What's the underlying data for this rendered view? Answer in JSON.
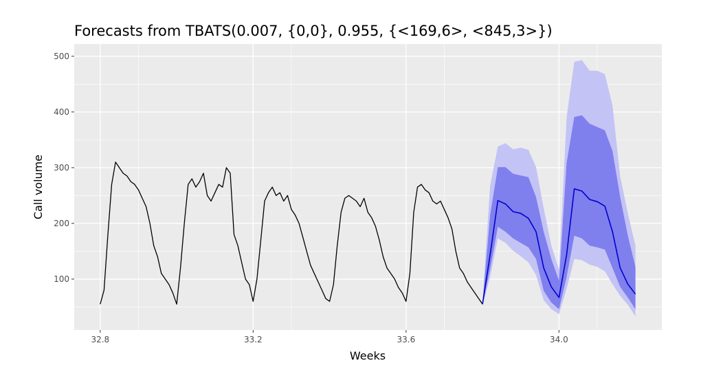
{
  "chart_data": {
    "type": "line",
    "title": "Forecasts from TBATS(0.007, {0,0}, 0.955, {<169,6>, <845,3>})",
    "xlabel": "Weeks",
    "ylabel": "Call volume",
    "xlim": [
      32.732,
      34.269
    ],
    "ylim": [
      8.6,
      522
    ],
    "x_ticks": [
      32.8,
      33.2,
      33.6,
      34.0
    ],
    "x_tick_labels": [
      "32.8",
      "33.2",
      "33.6",
      "34.0"
    ],
    "y_ticks": [
      100,
      200,
      300,
      400,
      500
    ],
    "y_tick_labels": [
      "100",
      "200",
      "300",
      "400",
      "500"
    ],
    "grid": true,
    "legend": "none",
    "colors": {
      "panel": "#ebebeb",
      "grid": "#ffffff",
      "history": "#000000",
      "mean": "#0000cc",
      "band80": "#7f7fee",
      "band95": "#c3c3f5"
    },
    "history": {
      "x": [
        32.8,
        32.81,
        32.82,
        32.83,
        32.84,
        32.85,
        32.86,
        32.87,
        32.88,
        32.89,
        32.9,
        32.91,
        32.92,
        32.93,
        32.94,
        32.95,
        32.96,
        32.97,
        32.98,
        32.99,
        33.0,
        33.01,
        33.02,
        33.03,
        33.04,
        33.05,
        33.06,
        33.07,
        33.08,
        33.09,
        33.1,
        33.11,
        33.12,
        33.13,
        33.14,
        33.15,
        33.16,
        33.17,
        33.18,
        33.19,
        33.2,
        33.21,
        33.22,
        33.23,
        33.24,
        33.25,
        33.26,
        33.27,
        33.28,
        33.29,
        33.3,
        33.31,
        33.32,
        33.33,
        33.34,
        33.35,
        33.36,
        33.37,
        33.38,
        33.39,
        33.4,
        33.41,
        33.42,
        33.43,
        33.44,
        33.45,
        33.46,
        33.47,
        33.48,
        33.49,
        33.5,
        33.51,
        33.52,
        33.53,
        33.54,
        33.55,
        33.56,
        33.57,
        33.58,
        33.59,
        33.6,
        33.61,
        33.62,
        33.63,
        33.64,
        33.65,
        33.66,
        33.67,
        33.68,
        33.69,
        33.7,
        33.71,
        33.72,
        33.73,
        33.74,
        33.75,
        33.76,
        33.77,
        33.78,
        33.79,
        33.8
      ],
      "y": [
        55,
        80,
        180,
        270,
        310,
        300,
        290,
        285,
        275,
        270,
        260,
        245,
        230,
        200,
        160,
        140,
        110,
        100,
        90,
        75,
        55,
        120,
        200,
        270,
        280,
        265,
        275,
        290,
        250,
        240,
        255,
        270,
        265,
        300,
        290,
        180,
        160,
        130,
        100,
        90,
        60,
        100,
        170,
        240,
        255,
        265,
        250,
        255,
        240,
        250,
        225,
        215,
        200,
        175,
        150,
        125,
        110,
        95,
        80,
        65,
        60,
        90,
        160,
        220,
        245,
        250,
        245,
        240,
        230,
        245,
        220,
        210,
        195,
        170,
        140,
        120,
        110,
        100,
        85,
        75,
        60,
        110,
        220,
        265,
        270,
        260,
        255,
        240,
        235,
        240,
        225,
        210,
        190,
        150,
        120,
        110,
        95,
        85,
        75,
        65,
        55
      ]
    },
    "forecast": {
      "x": [
        33.8,
        33.82,
        33.84,
        33.86,
        33.88,
        33.9,
        33.92,
        33.94,
        33.96,
        33.98,
        34.0,
        34.02,
        34.04,
        34.06,
        34.08,
        34.1,
        34.12,
        34.14,
        34.16,
        34.18,
        34.2
      ],
      "mean": [
        55,
        144,
        241,
        235,
        221,
        218,
        209,
        185,
        120,
        86,
        67,
        144,
        262,
        258,
        243,
        239,
        231,
        185,
        120,
        91,
        73
      ],
      "lo80": [
        53,
        118,
        194,
        185,
        173,
        165,
        157,
        136,
        79,
        58,
        46,
        104,
        178,
        173,
        160,
        157,
        153,
        120,
        86,
        67,
        46
      ],
      "hi80": [
        57,
        215,
        301,
        301,
        289,
        286,
        283,
        247,
        185,
        136,
        97,
        309,
        391,
        394,
        379,
        373,
        367,
        330,
        247,
        178,
        122
      ],
      "lo95": [
        52,
        104,
        173,
        165,
        151,
        141,
        130,
        107,
        62,
        46,
        37,
        83,
        136,
        134,
        126,
        122,
        114,
        91,
        70,
        54,
        33
      ],
      "hi95": [
        58,
        268,
        338,
        344,
        333,
        336,
        332,
        301,
        227,
        160,
        117,
        391,
        490,
        493,
        474,
        474,
        468,
        412,
        284,
        218,
        160
      ]
    }
  }
}
